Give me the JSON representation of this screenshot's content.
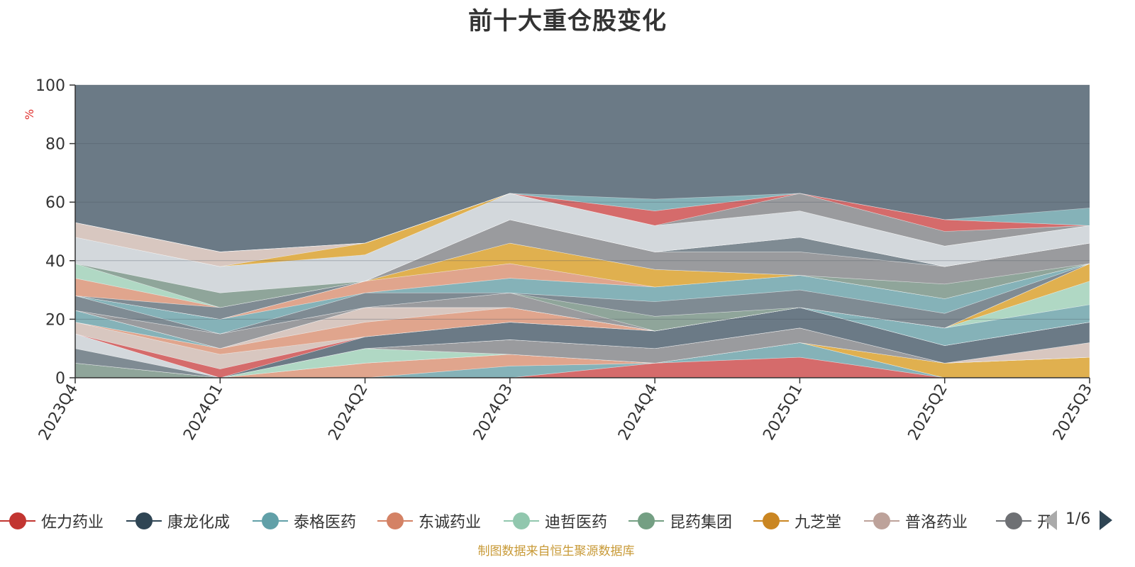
{
  "page": {
    "title": "前十大重仓股变化",
    "source_note": "制图数据来自恒生聚源数据库"
  },
  "legend": {
    "items": [
      {
        "label": "佐力药业",
        "color": "#c23531"
      },
      {
        "label": "康龙化成",
        "color": "#2f4554"
      },
      {
        "label": "泰格医药",
        "color": "#61a0a8"
      },
      {
        "label": "东诚药业",
        "color": "#d48265"
      },
      {
        "label": "迪哲医药",
        "color": "#91c7ae"
      },
      {
        "label": "昆药集团",
        "color": "#749f83"
      },
      {
        "label": "九芝堂",
        "color": "#ca8622"
      },
      {
        "label": "普洛药业",
        "color": "#bda29a"
      },
      {
        "label": "开立医疗",
        "color": "#6e7074"
      }
    ],
    "page_indicator": "1/6",
    "prev_icon": "triangle-left-icon",
    "next_icon": "triangle-right-icon"
  },
  "chart_data": {
    "type": "area",
    "title": "前十大重仓股变化",
    "ylabel": "%",
    "xlabel": "",
    "ylim": [
      0,
      100
    ],
    "yticks": [
      0,
      20,
      40,
      60,
      80,
      100
    ],
    "grid": true,
    "stacked": true,
    "categories": [
      "2023Q4",
      "2024Q1",
      "2024Q2",
      "2024Q3",
      "2024Q4",
      "2025Q1",
      "2025Q2",
      "2025Q3"
    ],
    "background_series_color": "#6b7a86",
    "layers": [
      {
        "color": "#d56b6b",
        "values": [
          0,
          0,
          0,
          0,
          5,
          7,
          0,
          0
        ]
      },
      {
        "color": "#85b2b8",
        "values": [
          0,
          0,
          0,
          4,
          0,
          5,
          0,
          0
        ]
      },
      {
        "color": "#e0a58d",
        "values": [
          0,
          0,
          5,
          4,
          0,
          0,
          0,
          0
        ]
      },
      {
        "color": "#e0b04f",
        "values": [
          0,
          0,
          0,
          0,
          0,
          0,
          5,
          7
        ]
      },
      {
        "color": "#b0d8c4",
        "values": [
          0,
          0,
          5,
          0,
          0,
          0,
          0,
          0
        ]
      },
      {
        "color": "#8fa59a",
        "values": [
          5,
          0,
          0,
          0,
          0,
          0,
          0,
          0
        ]
      },
      {
        "color": "#9a9b9e",
        "values": [
          0,
          0,
          0,
          5,
          5,
          5,
          0,
          0
        ]
      },
      {
        "color": "#d8c7c0",
        "values": [
          0,
          0,
          0,
          0,
          0,
          0,
          0,
          5
        ]
      },
      {
        "color": "#7f8b93",
        "values": [
          5,
          0,
          0,
          0,
          0,
          0,
          0,
          0
        ]
      },
      {
        "color": "#d3d8dc",
        "values": [
          5,
          0,
          0,
          0,
          0,
          0,
          0,
          0
        ]
      },
      {
        "color": "#6b7a86",
        "values": [
          0,
          0,
          4,
          6,
          6,
          7,
          6,
          7
        ]
      },
      {
        "color": "#d56b6b",
        "values": [
          0,
          3,
          0,
          0,
          0,
          0,
          0,
          0
        ]
      },
      {
        "color": "#d8c7c0",
        "values": [
          4,
          5,
          0,
          0,
          0,
          0,
          0,
          0
        ]
      },
      {
        "color": "#e0a58d",
        "values": [
          0,
          2,
          5,
          5,
          0,
          0,
          0,
          0
        ]
      },
      {
        "color": "#d8c7c0",
        "values": [
          0,
          0,
          5,
          0,
          0,
          0,
          0,
          0
        ]
      },
      {
        "color": "#85b2b8",
        "values": [
          4,
          0,
          0,
          0,
          0,
          0,
          6,
          6
        ]
      },
      {
        "color": "#b0d8c4",
        "values": [
          0,
          0,
          0,
          0,
          0,
          0,
          0,
          8
        ]
      },
      {
        "color": "#e0b04f",
        "values": [
          0,
          0,
          0,
          0,
          0,
          0,
          0,
          6
        ]
      },
      {
        "color": "#9a9b9e",
        "values": [
          0,
          5,
          0,
          5,
          0,
          0,
          0,
          0
        ]
      },
      {
        "color": "#8fa59a",
        "values": [
          0,
          0,
          0,
          0,
          5,
          0,
          0,
          0
        ]
      },
      {
        "color": "#7f8b93",
        "values": [
          5,
          0,
          5,
          0,
          5,
          6,
          5,
          0
        ]
      },
      {
        "color": "#85b2b8",
        "values": [
          0,
          5,
          0,
          5,
          5,
          5,
          5,
          0
        ]
      },
      {
        "color": "#e0a58d",
        "values": [
          0,
          0,
          4,
          5,
          0,
          0,
          0,
          0
        ]
      },
      {
        "color": "#e0b04f",
        "values": [
          0,
          0,
          0,
          7,
          6,
          0,
          0,
          0
        ]
      },
      {
        "color": "#8fa59a",
        "values": [
          0,
          0,
          0,
          0,
          0,
          0,
          5,
          0
        ]
      },
      {
        "color": "#9a9b9e",
        "values": [
          0,
          0,
          0,
          8,
          6,
          8,
          6,
          7
        ]
      },
      {
        "color": "#7f8b93",
        "values": [
          0,
          4,
          0,
          0,
          0,
          5,
          0,
          0
        ]
      },
      {
        "color": "#e0a58d",
        "values": [
          6,
          0,
          0,
          0,
          0,
          0,
          0,
          0
        ]
      },
      {
        "color": "#b0d8c4",
        "values": [
          5,
          0,
          0,
          0,
          0,
          0,
          0,
          0
        ]
      },
      {
        "color": "#8fa59a",
        "values": [
          0,
          5,
          0,
          0,
          0,
          0,
          0,
          0
        ]
      },
      {
        "color": "#d3d8dc",
        "values": [
          9,
          9,
          9,
          9,
          9,
          9,
          7,
          6
        ]
      },
      {
        "color": "#e0b04f",
        "values": [
          0,
          0,
          4,
          0,
          0,
          0,
          0,
          0
        ]
      },
      {
        "color": "#d8c7c0",
        "values": [
          5,
          5,
          0,
          0,
          0,
          0,
          0,
          0
        ]
      },
      {
        "color": "#9a9b9e",
        "values": [
          0,
          0,
          0,
          0,
          0,
          6,
          5,
          0
        ]
      },
      {
        "color": "#d56b6b",
        "values": [
          0,
          0,
          0,
          0,
          5,
          0,
          4,
          0
        ]
      },
      {
        "color": "#85b2b8",
        "values": [
          0,
          0,
          0,
          0,
          4,
          0,
          0,
          6
        ]
      }
    ]
  }
}
